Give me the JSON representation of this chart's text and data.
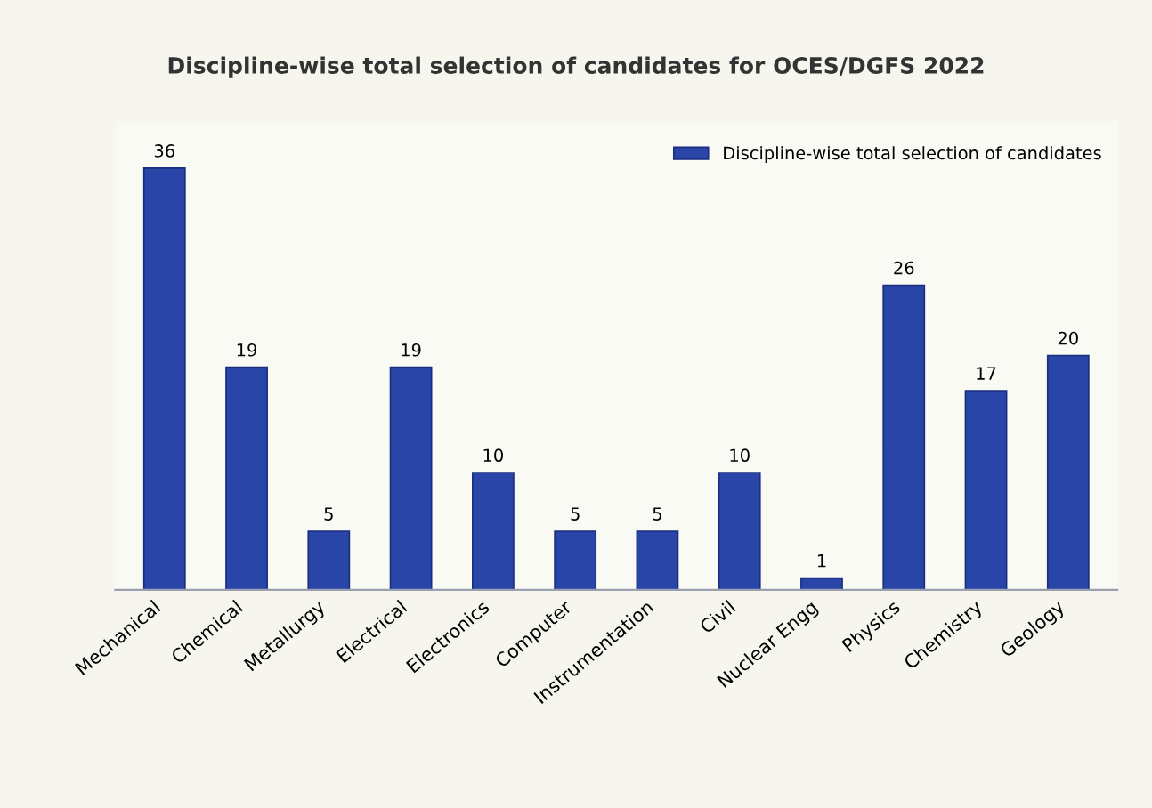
{
  "chart_data": {
    "type": "bar",
    "title": "Discipline-wise total selection of candidates for OCES/DGFS 2022",
    "categories": [
      "Mechanical",
      "Chemical",
      "Metallurgy",
      "Electrical",
      "Electronics",
      "Computer",
      "Instrumentation",
      "Civil",
      "Nuclear Engg",
      "Physics",
      "Chemistry",
      "Geology"
    ],
    "series": [
      {
        "name": "Discipline-wise total selection of candidates",
        "color": "#2a45a8",
        "values": [
          36,
          19,
          5,
          19,
          10,
          5,
          5,
          10,
          1,
          26,
          17,
          20
        ]
      }
    ],
    "ylim": [
      0,
      40
    ],
    "tick_labels": "x",
    "data_labels": true,
    "grid": false,
    "legend": "top right"
  }
}
